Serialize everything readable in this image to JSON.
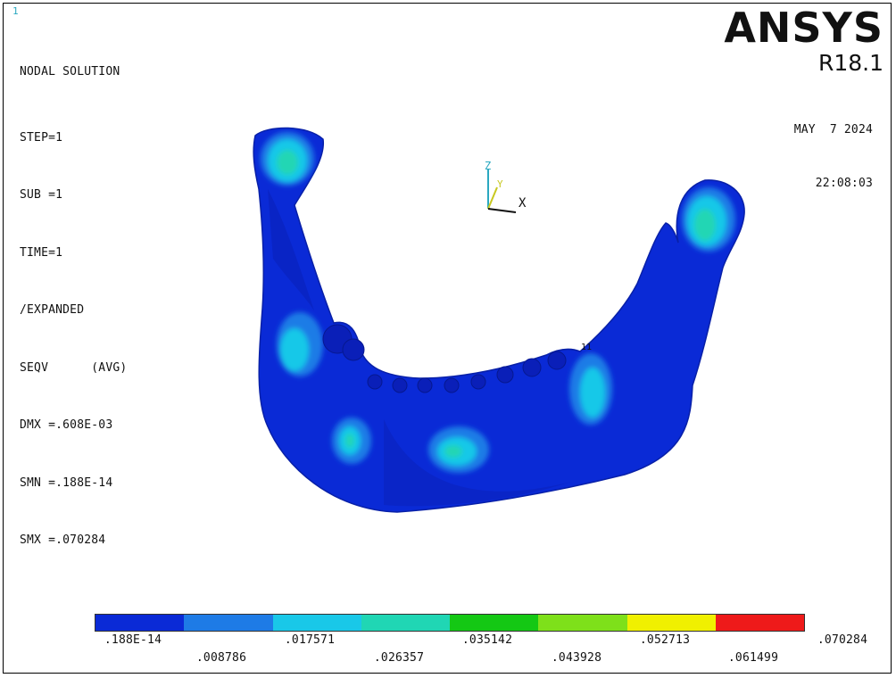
{
  "window": {
    "number": "1"
  },
  "header": {
    "title": "NODAL SOLUTION",
    "lines": [
      "STEP=1",
      "SUB =1",
      "TIME=1",
      "/EXPANDED",
      "SEQV      (AVG)",
      "DMX =.608E-03",
      "SMN =.188E-14",
      "SMX =.070284"
    ]
  },
  "brand": {
    "logo": "ANSYS",
    "version": "R18.1"
  },
  "timestamp": {
    "date": "MAY  7 2024",
    "time": "22:08:03"
  },
  "triad": {
    "z": "Z",
    "y": "Y",
    "x": "X"
  },
  "node_label": "11",
  "legend": {
    "colors": [
      "#0a2ad6",
      "#1e7be6",
      "#19c8e8",
      "#20d6b4",
      "#14c814",
      "#7ee01a",
      "#f0f000",
      "#ee1a1a"
    ],
    "top_labels": [
      ".188E-14",
      ".017571",
      ".035142",
      ".052713",
      ".070284"
    ],
    "bottom_labels": [
      ".008786",
      ".026357",
      ".043928",
      ".061499"
    ]
  }
}
